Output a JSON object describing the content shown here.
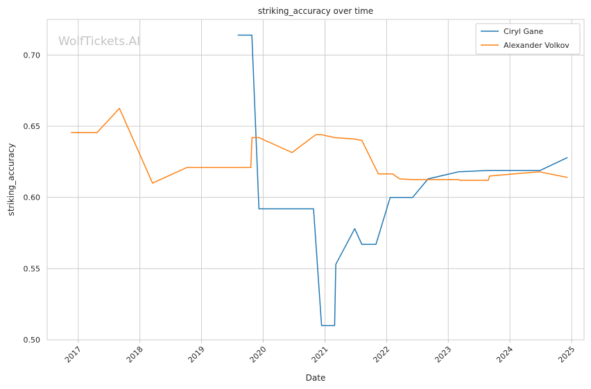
{
  "chart_data": {
    "type": "line",
    "title": "striking_accuracy over time",
    "xlabel": "Date",
    "ylabel": "striking_accuracy",
    "xlim": [
      "2016-07-01",
      "2025-03-15"
    ],
    "ylim": [
      0.5,
      0.725
    ],
    "x_ticks": [
      "2017",
      "2018",
      "2019",
      "2020",
      "2021",
      "2022",
      "2023",
      "2024",
      "2025"
    ],
    "y_ticks": [
      "0.50",
      "0.55",
      "0.60",
      "0.65",
      "0.70"
    ],
    "y_tick_values": [
      0.5,
      0.55,
      0.6,
      0.65,
      0.7
    ],
    "x_tick_rotation": 45,
    "grid": true,
    "legend_position": "top-right",
    "watermark": "WolfTickets.AI",
    "series": [
      {
        "name": "Ciryl Gane",
        "color": "#1f77b4",
        "points": [
          [
            "2019-08-03",
            0.714
          ],
          [
            "2019-10-26",
            0.714
          ],
          [
            "2019-12-07",
            0.592
          ],
          [
            "2020-10-25",
            0.592
          ],
          [
            "2020-12-12",
            0.51
          ],
          [
            "2021-02-27",
            0.51
          ],
          [
            "2021-03-06",
            0.553
          ],
          [
            "2021-06-26",
            0.578
          ],
          [
            "2021-08-07",
            0.567
          ],
          [
            "2021-10-30",
            0.567
          ],
          [
            "2022-01-22",
            0.6
          ],
          [
            "2022-06-04",
            0.6
          ],
          [
            "2022-09-03",
            0.613
          ],
          [
            "2023-03-04",
            0.618
          ],
          [
            "2023-09-02",
            0.619
          ],
          [
            "2024-06-29",
            0.619
          ],
          [
            "2024-12-07",
            0.628
          ]
        ]
      },
      {
        "name": "Alexander Volkov",
        "color": "#ff7f0e",
        "points": [
          [
            "2016-11-19",
            0.6455
          ],
          [
            "2017-04-22",
            0.6455
          ],
          [
            "2017-09-02",
            0.6625
          ],
          [
            "2018-03-17",
            0.61
          ],
          [
            "2018-10-06",
            0.621
          ],
          [
            "2019-10-20",
            0.621
          ],
          [
            "2019-10-27",
            0.642
          ],
          [
            "2019-12-07",
            0.642
          ],
          [
            "2020-06-20",
            0.6315
          ],
          [
            "2020-11-07",
            0.644
          ],
          [
            "2020-12-12",
            0.644
          ],
          [
            "2021-02-27",
            0.642
          ],
          [
            "2021-06-26",
            0.641
          ],
          [
            "2021-08-07",
            0.64
          ],
          [
            "2021-11-13",
            0.6165
          ],
          [
            "2022-02-05",
            0.6165
          ],
          [
            "2022-03-19",
            0.613
          ],
          [
            "2022-06-04",
            0.6125
          ],
          [
            "2023-03-04",
            0.6125
          ],
          [
            "2023-03-11",
            0.612
          ],
          [
            "2023-08-26",
            0.612
          ],
          [
            "2023-09-02",
            0.615
          ],
          [
            "2024-06-22",
            0.618
          ],
          [
            "2024-12-07",
            0.614
          ]
        ]
      }
    ]
  }
}
